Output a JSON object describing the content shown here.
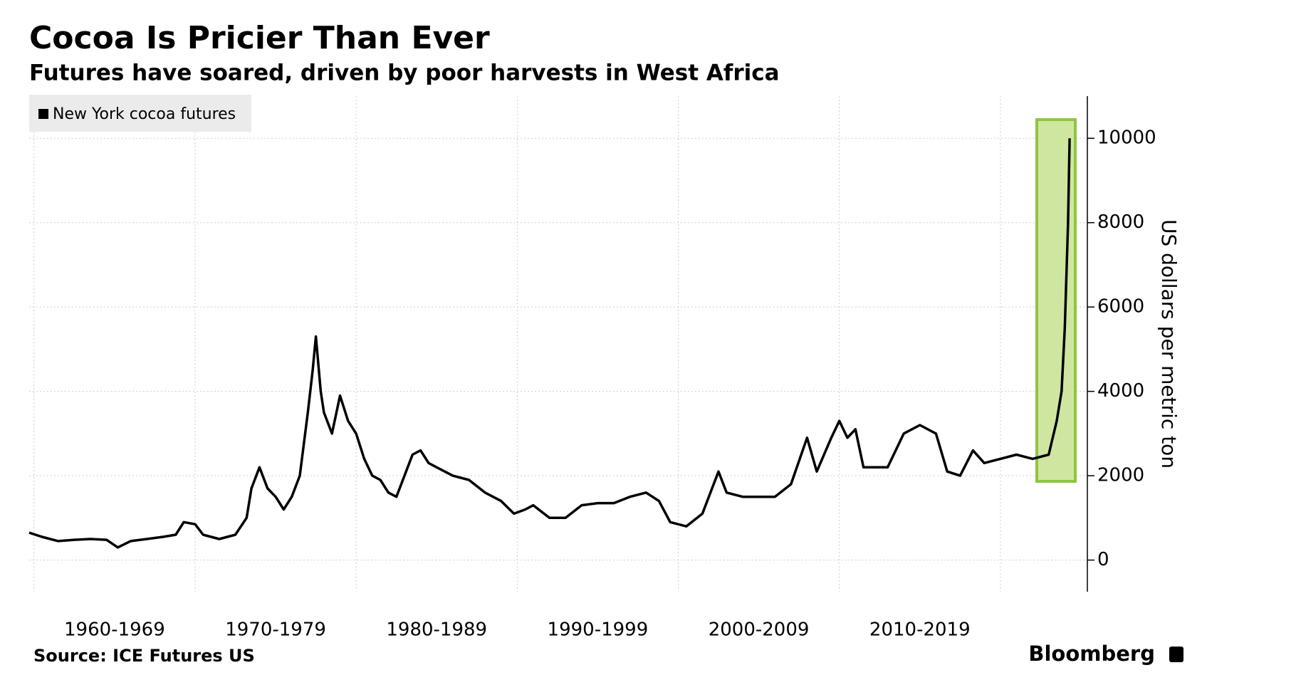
{
  "chart_data": {
    "type": "line",
    "title": "Cocoa Is Pricier Than Ever",
    "subtitle": "Futures have soared, driven by poor harvests in West Africa",
    "source": "Source: ICE Futures US",
    "brand": "Bloomberg",
    "y_label": "US dollars per metric ton",
    "legend": "top-left",
    "grid": true,
    "x": [
      1959.7,
      1960.5,
      1961.5,
      1962.5,
      1963.5,
      1964.5,
      1965.2,
      1966,
      1967,
      1968,
      1968.8,
      1969.3,
      1970,
      1970.5,
      1971.5,
      1972.5,
      1973.2,
      1973.5,
      1974,
      1974.5,
      1975,
      1975.5,
      1976,
      1976.5,
      1977,
      1977.3,
      1977.5,
      1977.8,
      1978,
      1978.5,
      1979,
      1979.5,
      1980,
      1980.5,
      1981,
      1981.5,
      1982,
      1982.5,
      1983,
      1983.5,
      1984,
      1984.5,
      1985,
      1986,
      1987,
      1988,
      1989,
      1989.8,
      1990.5,
      1991,
      1992,
      1993,
      1994,
      1995,
      1996,
      1997,
      1998,
      1998.8,
      1999.5,
      2000.5,
      2001.5,
      2002.5,
      2003,
      2004,
      2005,
      2006,
      2007,
      2008,
      2008.6,
      2009.5,
      2010,
      2010.5,
      2011,
      2011.5,
      2012,
      2013,
      2014,
      2015,
      2016,
      2016.7,
      2017.5,
      2018.3,
      2019,
      2020,
      2021,
      2022,
      2023,
      2023.5,
      2023.8,
      2024.0,
      2024.2,
      2024.3
    ],
    "series": [
      {
        "name": "New York cocoa futures",
        "color": "#000000",
        "values": [
          650,
          550,
          450,
          480,
          500,
          480,
          300,
          450,
          500,
          550,
          600,
          900,
          850,
          600,
          500,
          600,
          1000,
          1700,
          2200,
          1700,
          1500,
          1200,
          1500,
          2000,
          3500,
          4500,
          5300,
          4000,
          3500,
          3000,
          3900,
          3300,
          3000,
          2400,
          2000,
          1900,
          1600,
          1500,
          2000,
          2500,
          2600,
          2300,
          2200,
          2000,
          1900,
          1600,
          1400,
          1100,
          1200,
          1300,
          1000,
          1000,
          1300,
          1350,
          1350,
          1500,
          1600,
          1400,
          900,
          800,
          1100,
          2100,
          1600,
          1500,
          1500,
          1500,
          1800,
          2900,
          2100,
          2900,
          3300,
          2900,
          3100,
          2200,
          2200,
          2200,
          3000,
          3200,
          3000,
          2100,
          2000,
          2600,
          2300,
          2400,
          2500,
          2400,
          2500,
          3300,
          4000,
          5500,
          8000,
          10000
        ]
      }
    ],
    "xlim": [
      1959.7,
      2025.4
    ],
    "xticks": [
      {
        "value": 1965,
        "label": "1960-1969"
      },
      {
        "value": 1975,
        "label": "1970-1979"
      },
      {
        "value": 1985,
        "label": "1980-1989"
      },
      {
        "value": 1995,
        "label": "1990-1999"
      },
      {
        "value": 2005,
        "label": "2000-2009"
      },
      {
        "value": 2015,
        "label": "2010-2019"
      }
    ],
    "xgrid": [
      1960,
      1970,
      1980,
      1990,
      2000,
      2010,
      2020
    ],
    "ylim": [
      -750,
      11000
    ],
    "yticks": [
      0,
      2000,
      4000,
      6000,
      8000,
      10000
    ]
  }
}
